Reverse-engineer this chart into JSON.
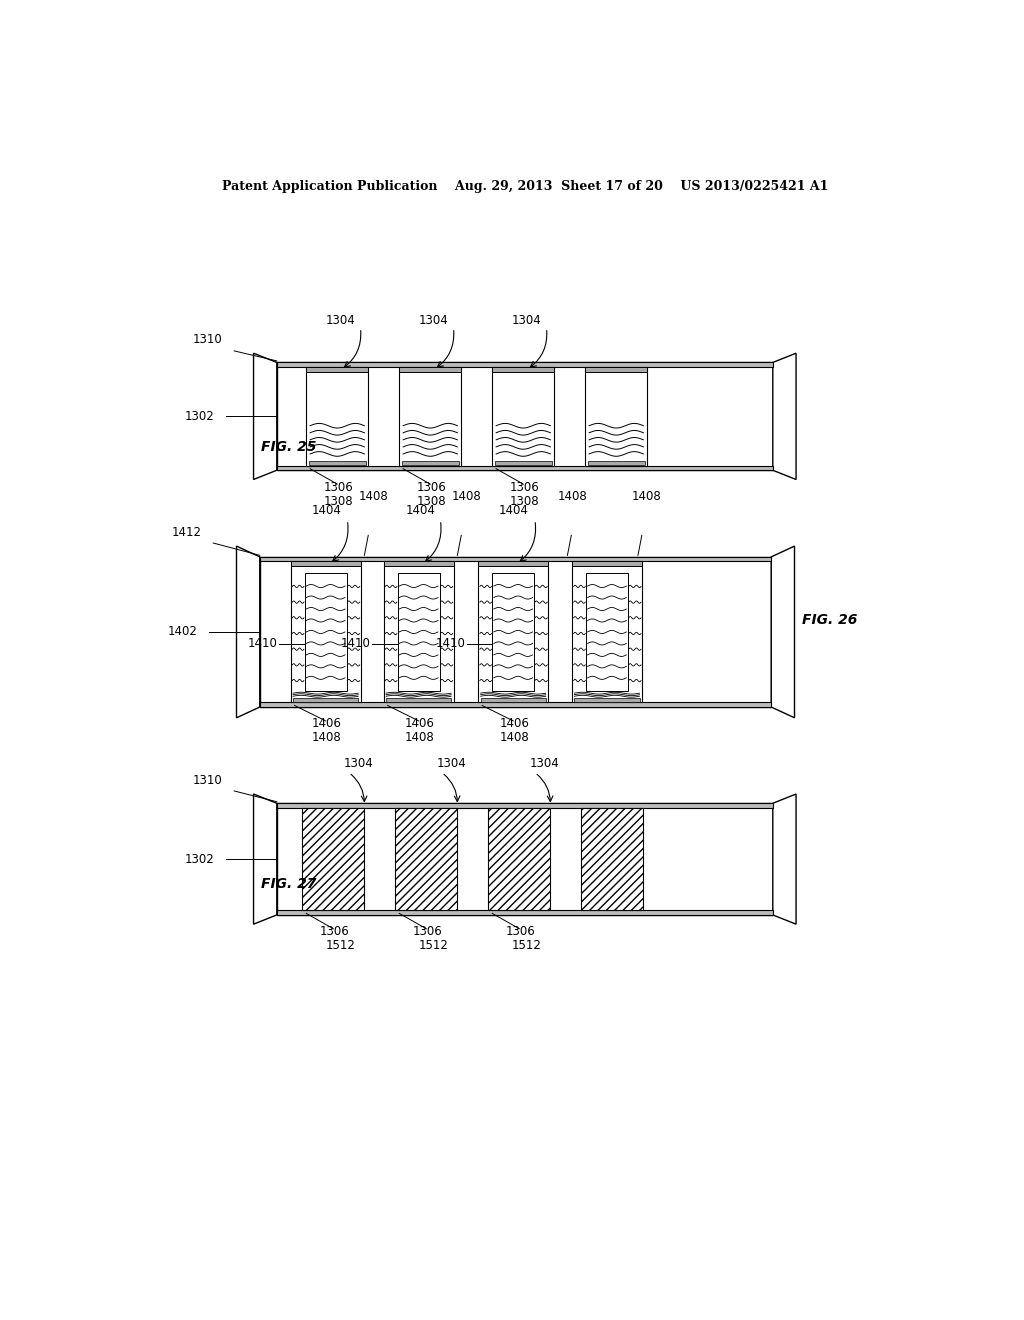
{
  "header": "Patent Application Publication    Aug. 29, 2013  Sheet 17 of 20    US 2013/0225421 A1",
  "fig25_label": "FIG. 25",
  "fig26_label": "FIG. 26",
  "fig27_label": "FIG. 27",
  "bg": "#ffffff",
  "lc": "#000000",
  "gray": "#aaaaaa",
  "darkgray": "#777777",
  "fs": 8.5,
  "header_fs": 9
}
